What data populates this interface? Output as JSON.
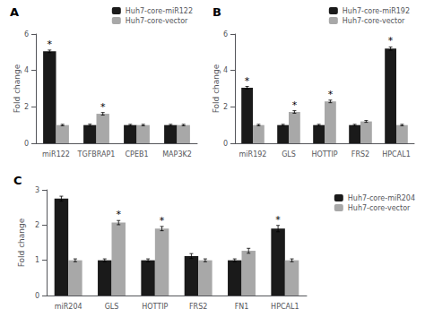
{
  "chart_data": [
    {
      "type": "bar",
      "title": "A",
      "ylabel": "Fold change",
      "categories": [
        "miR122",
        "TGFBRAP1",
        "CPEB1",
        "MAP3K2"
      ],
      "ylim": [
        0,
        6
      ],
      "yticks": [
        0,
        2,
        4,
        6
      ],
      "grid": false,
      "legend": "upper right",
      "series": [
        {
          "name": "Huh7-core-miR122",
          "color": "#1a1a1a",
          "values": [
            5.05,
            1.0,
            1.0,
            1.0
          ],
          "errors": [
            0.07,
            0.05,
            0.04,
            0.04
          ],
          "annotations": [
            "*",
            null,
            null,
            null
          ]
        },
        {
          "name": "Huh7-core-vector",
          "color": "#a8a8a8",
          "values": [
            1.0,
            1.62,
            1.0,
            1.0
          ],
          "errors": [
            0.04,
            0.07,
            0.04,
            0.04
          ],
          "annotations": [
            null,
            "*",
            null,
            null
          ]
        }
      ]
    },
    {
      "type": "bar",
      "title": "B",
      "ylabel": "Fold change",
      "categories": [
        "miR192",
        "GLS",
        "HOTTIP",
        "FRS2",
        "HPCAL1"
      ],
      "ylim": [
        0,
        6
      ],
      "yticks": [
        0,
        2,
        4,
        6
      ],
      "grid": false,
      "legend": "upper right",
      "series": [
        {
          "name": "Huh7-core-miR192",
          "color": "#1a1a1a",
          "values": [
            3.05,
            1.0,
            1.0,
            1.0,
            5.2
          ],
          "errors": [
            0.07,
            0.04,
            0.04,
            0.04,
            0.09
          ],
          "annotations": [
            "*",
            null,
            null,
            null,
            "*"
          ]
        },
        {
          "name": "Huh7-core-vector",
          "color": "#a8a8a8",
          "values": [
            1.0,
            1.72,
            2.3,
            1.2,
            1.0
          ],
          "errors": [
            0.04,
            0.07,
            0.07,
            0.05,
            0.04
          ],
          "annotations": [
            null,
            "*",
            "*",
            null,
            null
          ]
        }
      ]
    },
    {
      "type": "bar",
      "title": "C",
      "ylabel": "Fold change",
      "categories": [
        "miR204",
        "GLS",
        "HOTTIP",
        "FRS2",
        "FN1",
        "HPCAL1"
      ],
      "ylim": [
        0,
        3
      ],
      "yticks": [
        0,
        1,
        2,
        3
      ],
      "grid": false,
      "legend": "upper right",
      "series": [
        {
          "name": "Huh7-core-miR204",
          "color": "#1a1a1a",
          "values": [
            2.75,
            1.0,
            1.0,
            1.12,
            1.0,
            1.9
          ],
          "errors": [
            0.07,
            0.04,
            0.04,
            0.07,
            0.04,
            0.09
          ],
          "annotations": [
            null,
            null,
            null,
            null,
            null,
            "*"
          ]
        },
        {
          "name": "Huh7-core-vector",
          "color": "#a8a8a8",
          "values": [
            1.0,
            2.07,
            1.9,
            1.0,
            1.27,
            1.0
          ],
          "errors": [
            0.04,
            0.06,
            0.06,
            0.04,
            0.07,
            0.04
          ],
          "annotations": [
            null,
            "*",
            "*",
            null,
            null,
            null
          ]
        }
      ]
    }
  ]
}
